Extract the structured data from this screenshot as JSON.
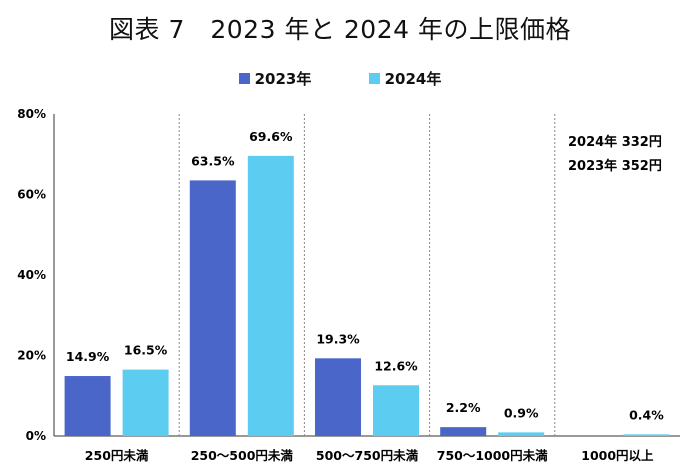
{
  "chart_data": {
    "type": "bar",
    "title": "図表 7　2023 年と 2024 年の上限価格",
    "categories": [
      "250円未満",
      "250～500円未満",
      "500～750円未満",
      "750～1000円未満",
      "1000円以上"
    ],
    "series": [
      {
        "name": "2023年",
        "color": "#4a66c8",
        "values": [
          14.9,
          63.5,
          19.3,
          2.2,
          null
        ],
        "labels": [
          "14.9%",
          "63.5%",
          "19.3%",
          "2.2%",
          ""
        ]
      },
      {
        "name": "2024年",
        "color": "#5ccdf0",
        "values": [
          16.5,
          69.6,
          12.6,
          0.9,
          0.4
        ],
        "labels": [
          "16.5%",
          "69.6%",
          "12.6%",
          "0.9%",
          "0.4%"
        ]
      }
    ],
    "y_ticks": [
      0,
      20,
      40,
      60,
      80
    ],
    "y_tick_labels": [
      "0%",
      "20%",
      "40%",
      "60%",
      "80%"
    ],
    "ylim": [
      0,
      80
    ],
    "gridlines": false,
    "category_separators": "dotted",
    "legend_position": "top",
    "annotations": [
      "2024年 332円",
      "2023年 352円"
    ]
  }
}
